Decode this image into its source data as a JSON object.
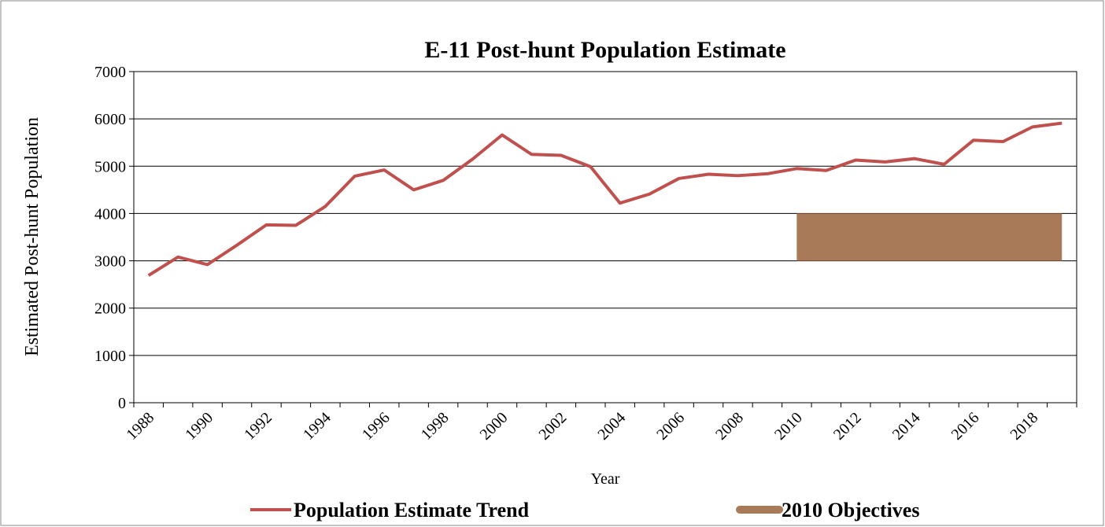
{
  "chart_data": {
    "type": "line",
    "title": "E-11 Post-hunt Population Estimate",
    "x_label": "Year",
    "y_label": "Estimated Post-hunt Population",
    "categories": [
      "1988",
      null,
      "1990",
      null,
      "1992",
      null,
      "1994",
      null,
      "1996",
      null,
      "1998",
      null,
      "2000",
      null,
      "2002",
      null,
      "2004",
      null,
      "2006",
      null,
      "2008",
      null,
      "2010",
      null,
      "2012",
      null,
      "2014",
      null,
      "2016",
      null,
      "2018",
      null
    ],
    "series": [
      {
        "name": "Population Estimate Trend",
        "color": "#c0504d",
        "values": [
          2690,
          3080,
          2920,
          3330,
          3760,
          3750,
          4150,
          4790,
          4920,
          4500,
          4700,
          5150,
          5660,
          5250,
          5230,
          4990,
          4220,
          4410,
          4740,
          4830,
          4800,
          4840,
          4950,
          4910,
          5130,
          5090,
          5160,
          5040,
          5550,
          5520,
          5830,
          5910
        ]
      },
      {
        "name": "2010 Objectives",
        "color": "#a97a57",
        "kind": "range",
        "values": [
          null,
          null,
          null,
          null,
          null,
          null,
          null,
          null,
          null,
          null,
          null,
          null,
          null,
          null,
          null,
          null,
          null,
          null,
          null,
          null,
          null,
          null,
          4000,
          4000,
          4000,
          4000,
          4000,
          4000,
          4000,
          4000,
          4000,
          4000
        ],
        "base": [
          null,
          null,
          null,
          null,
          null,
          null,
          null,
          null,
          null,
          null,
          null,
          null,
          null,
          null,
          null,
          null,
          null,
          null,
          null,
          null,
          null,
          null,
          3000,
          3000,
          3000,
          3000,
          3000,
          3000,
          3000,
          3000,
          3000,
          3000
        ]
      }
    ],
    "ylim": [
      0,
      7000
    ],
    "yticks": [
      0,
      1000,
      2000,
      3000,
      4000,
      5000,
      6000,
      7000
    ],
    "grid": true,
    "legend": "bottom"
  }
}
